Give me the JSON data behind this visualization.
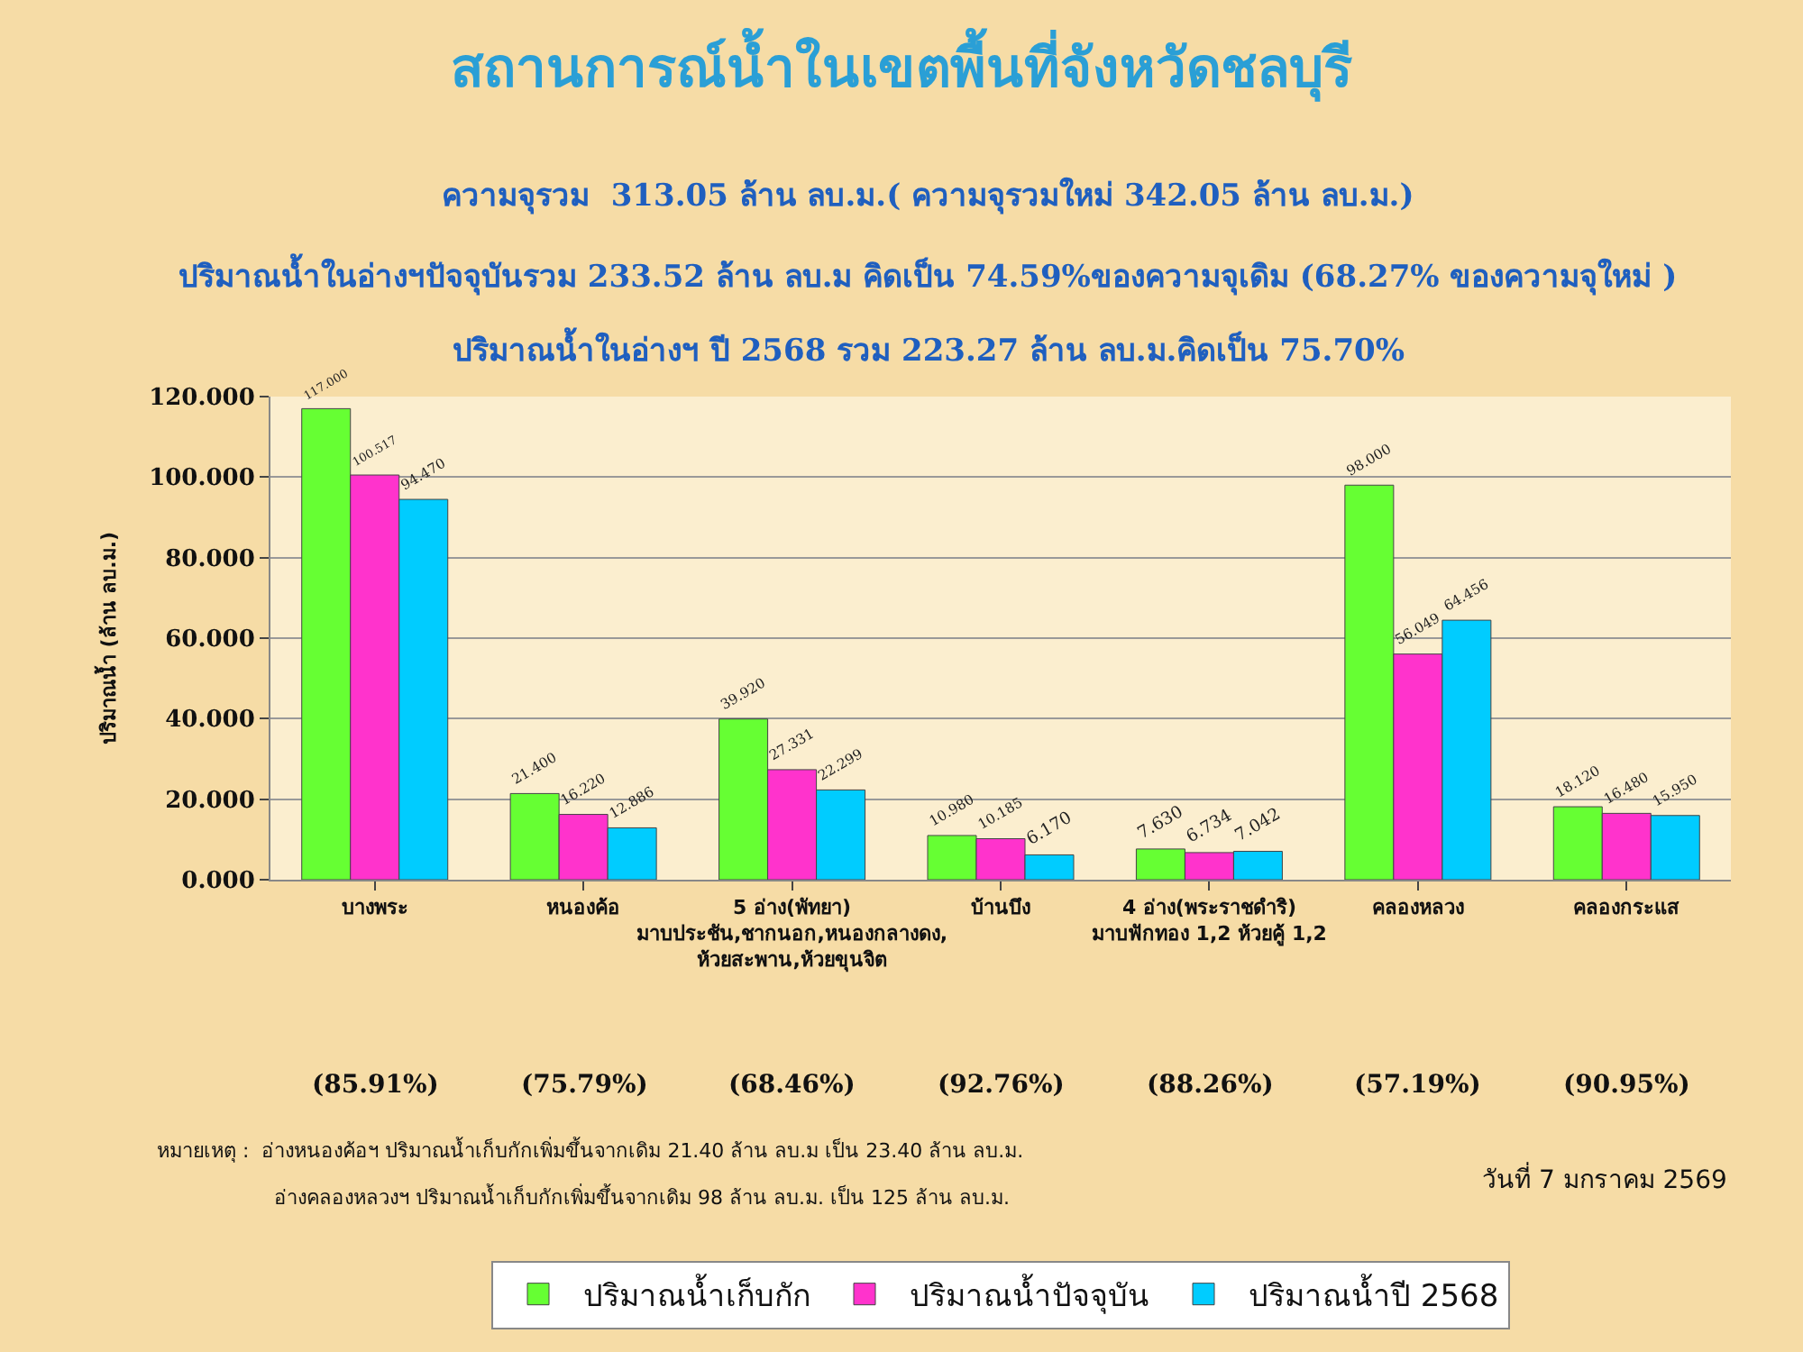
{
  "chart_data": {
    "type": "bar",
    "title": "สถานการณ์น้ำในเขตพื้นที่จังหวัดชลบุรี",
    "subtitle": "ความจุรวม  313.05 ล้าน ลบ.ม.( ความจุรวมใหม่ 342.05 ล้าน ลบ.ม.)\nปริมาณน้ำในอ่างฯปัจจุบันรวม 233.52 ล้าน ลบ.ม คิดเป็น 74.59%ของความจุเดิม (68.27% ของความจุใหม่ )\nปริมาณน้ำในอ่างฯ ปี 2568 รวม 223.27 ล้าน ลบ.ม.คิดเป็น 75.70%",
    "ylabel": "ปริมาณน้ำ (ล้าน ลบ.ม.)",
    "categories": [
      "บางพระ",
      "หนองค้อ",
      "5 อ่าง(พัทยา)\nมาบประชัน,ชากนอก,หนองกลางดง,\nห้วยสะพาน,ห้วยขุนจิต",
      "บ้านบึง",
      "4 อ่าง(พระราชดำริ)\nมาบฟักทอง 1,2 ห้วยคู้ 1,2",
      "คลองหลวง",
      "คลองกระแส"
    ],
    "series": [
      {
        "name": "ปริมาณน้ำเก็บกัก",
        "color": "#66ff33",
        "values": [
          117.0,
          21.4,
          39.92,
          10.98,
          7.63,
          98.0,
          18.12
        ],
        "value_labels": [
          "117.000",
          "21.400",
          "39.920",
          "10.980",
          "7.630",
          "98.000",
          "18.120"
        ]
      },
      {
        "name": "ปริมาณน้ำปัจจุบัน",
        "color": "#ff33cc",
        "values": [
          100.517,
          16.22,
          27.331,
          10.185,
          6.734,
          56.049,
          16.48
        ],
        "value_labels": [
          "100.517",
          "16.220",
          "27.331",
          "10.185",
          "6.734",
          "56.049",
          "16.480"
        ]
      },
      {
        "name": "ปริมาณน้ำปี 2568",
        "color": "#00ccff",
        "values": [
          94.47,
          12.886,
          22.299,
          6.17,
          7.042,
          64.456,
          15.95
        ],
        "value_labels": [
          "94.470",
          "12.886",
          "22.299",
          "6.170",
          "7.042",
          "64.456",
          "15.950"
        ]
      }
    ],
    "ylim": [
      0,
      120
    ],
    "yticks": [
      {
        "value": 0,
        "label": "0.000"
      },
      {
        "value": 20,
        "label": "20.000"
      },
      {
        "value": 40,
        "label": "40.000"
      },
      {
        "value": 60,
        "label": "60.000"
      },
      {
        "value": 80,
        "label": "80.000"
      },
      {
        "value": 100,
        "label": "100.000"
      },
      {
        "value": 120,
        "label": "120.000"
      }
    ],
    "grid": "y",
    "legend": "bottom",
    "annotations": [
      "(85.91%)",
      "(75.79%)",
      "(68.46%)",
      "(92.76%)",
      "(88.26%)",
      "(57.19%)",
      "(90.95%)",
      "หมายเหตุ :  อ่างหนองค้อฯ ปริมาณน้ำเก็บกักเพิ่มขึ้นจากเดิม 21.40 ล้าน ลบ.ม เป็น 23.40 ล้าน ลบ.ม.",
      "อ่างคลองหลวงฯ ปริมาณน้ำเก็บกักเพิ่มขึ้นจากเดิม 98 ล้าน ลบ.ม. เป็น 125 ล้าน ลบ.ม.",
      "วันที่ 7 มกราคม 2569"
    ]
  }
}
